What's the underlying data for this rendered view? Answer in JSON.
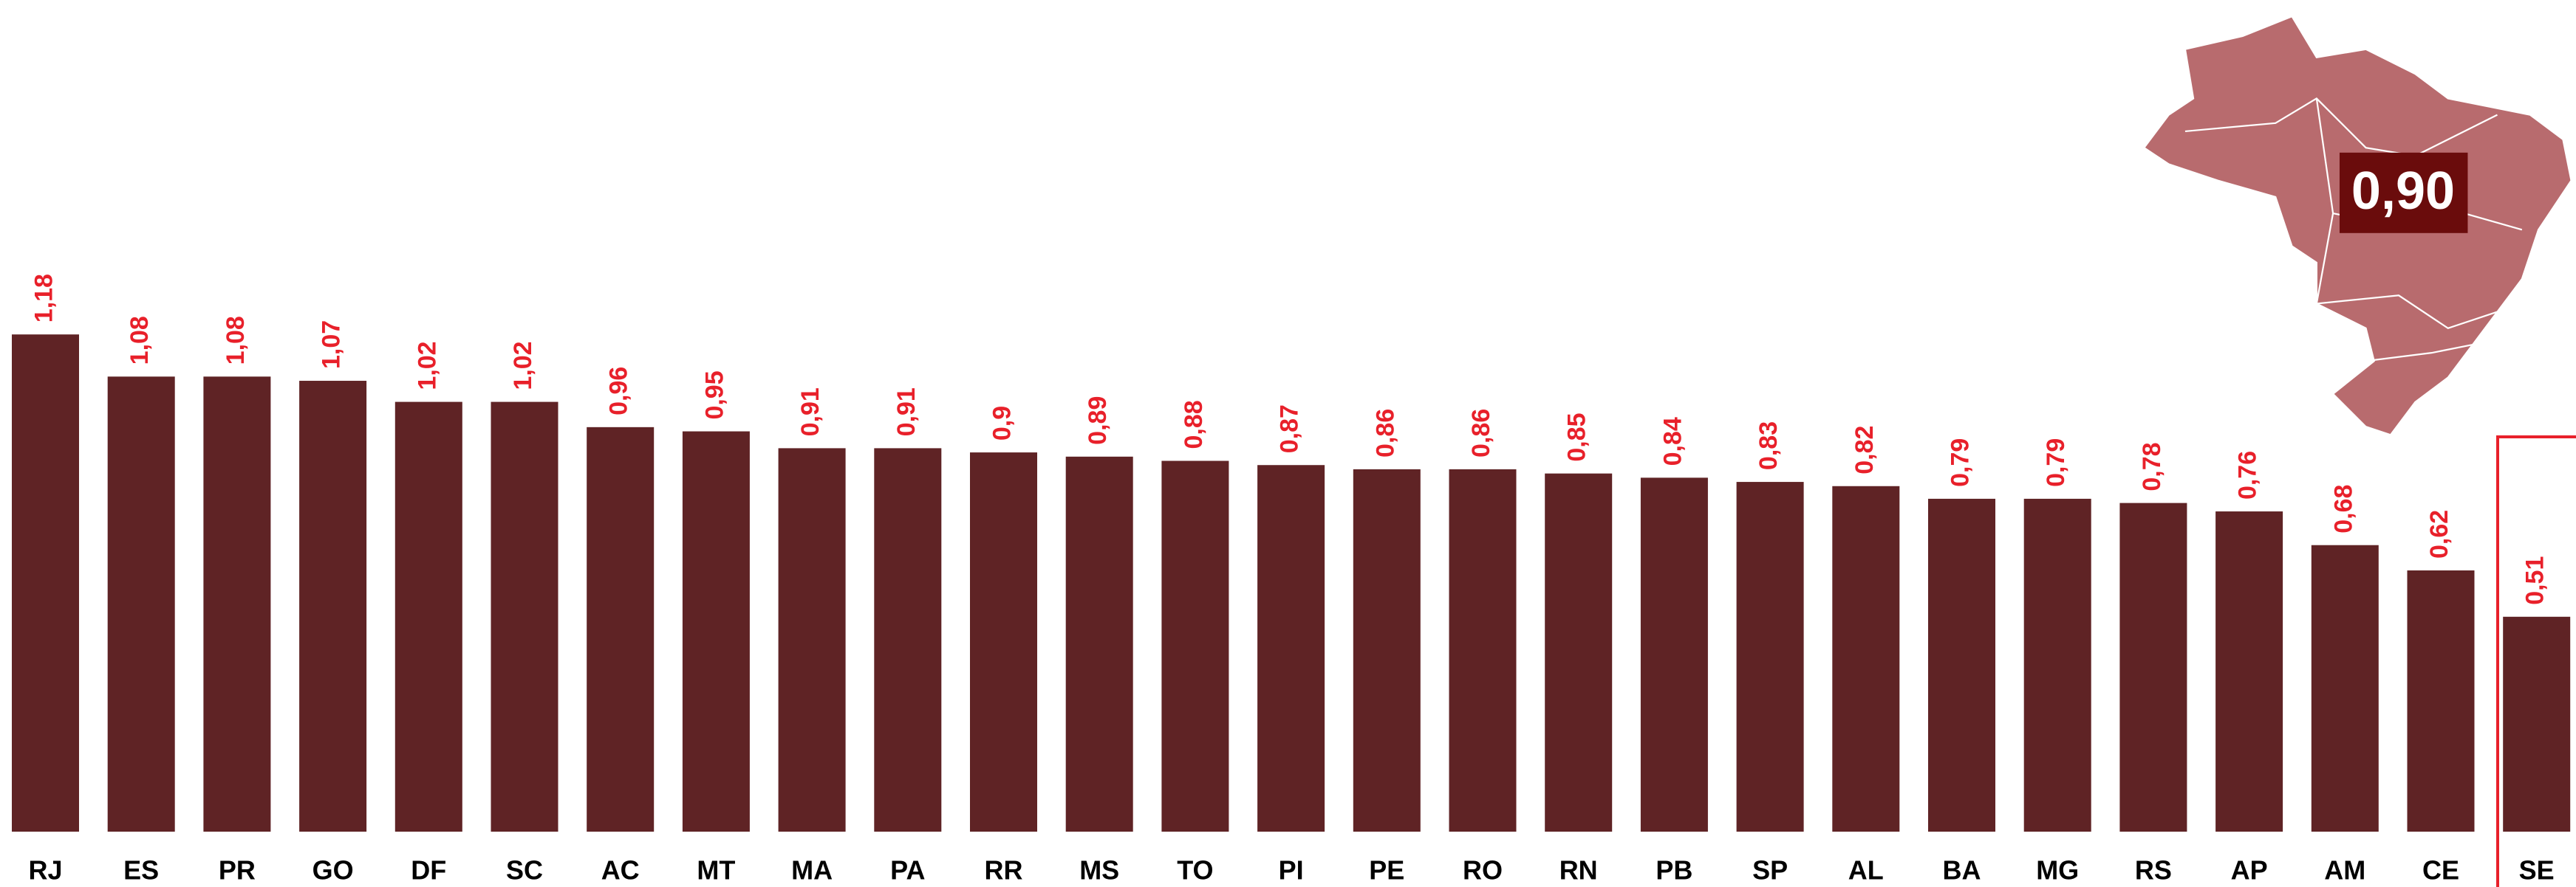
{
  "chart_data": {
    "type": "bar",
    "categories": [
      "RJ",
      "ES",
      "PR",
      "GO",
      "DF",
      "SC",
      "AC",
      "MT",
      "MA",
      "PA",
      "RR",
      "MS",
      "TO",
      "PI",
      "PE",
      "RO",
      "RN",
      "PB",
      "SP",
      "AL",
      "BA",
      "MG",
      "RS",
      "AP",
      "AM",
      "CE",
      "SE"
    ],
    "values": [
      1.18,
      1.08,
      1.08,
      1.07,
      1.02,
      1.02,
      0.96,
      0.95,
      0.91,
      0.91,
      0.9,
      0.89,
      0.88,
      0.87,
      0.86,
      0.86,
      0.85,
      0.84,
      0.83,
      0.82,
      0.79,
      0.79,
      0.78,
      0.76,
      0.68,
      0.62,
      0.51
    ],
    "value_labels": [
      "1,18",
      "1,08",
      "1,08",
      "1,07",
      "1,02",
      "1,02",
      "0,96",
      "0,95",
      "0,91",
      "0,91",
      "0,9",
      "0,89",
      "0,88",
      "0,87",
      "0,86",
      "0,86",
      "0,85",
      "0,84",
      "0,83",
      "0,82",
      "0,79",
      "0,79",
      "0,78",
      "0,76",
      "0,68",
      "0,62",
      "0,51"
    ],
    "color": "#5f2325",
    "label_color": "#e8202a",
    "annotation": "0,90"
  }
}
